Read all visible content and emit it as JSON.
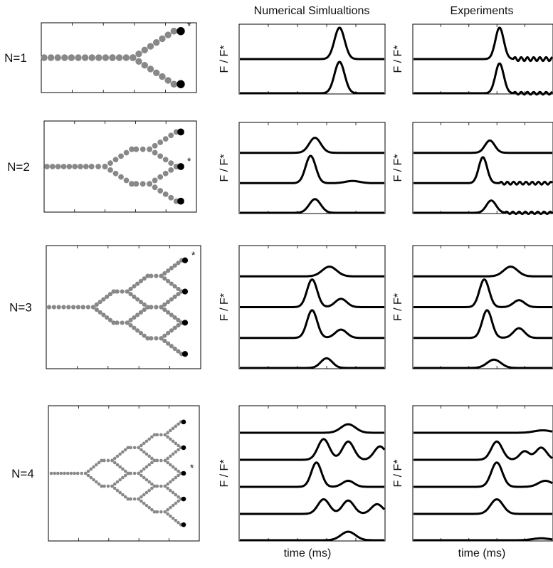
{
  "figure": {
    "col_titles": {
      "numerical": "Numerical Simlualtions",
      "experiments": "Experiments"
    },
    "ylabel": "F / F*",
    "xlabel": "time (ms)"
  },
  "colors": {
    "beads": "#888888",
    "ends": "#000000",
    "traces": "#000000",
    "frame": "#000000"
  },
  "chart_data": [
    {
      "type": "line",
      "row": "N=1",
      "tree_generations": 1,
      "star_output": 0,
      "numerical": [
        {
          "trace": 1,
          "baseline": 0,
          "peaks": [
            {
              "t": 0.69,
              "h": 1.0,
              "w": 0.035
            }
          ]
        },
        {
          "trace": 2,
          "baseline": 0,
          "peaks": [
            {
              "t": 0.69,
              "h": 1.0,
              "w": 0.035
            }
          ]
        }
      ],
      "experiments": [
        {
          "trace": 1,
          "baseline": 0,
          "peaks": [
            {
              "t": 0.62,
              "h": 1.0,
              "w": 0.03
            }
          ],
          "ripple": {
            "start": 0.72,
            "amp": 0.06
          }
        },
        {
          "trace": 2,
          "baseline": 0,
          "peaks": [
            {
              "t": 0.62,
              "h": 0.95,
              "w": 0.03
            }
          ],
          "ripple": {
            "start": 0.72,
            "amp": 0.04
          }
        }
      ]
    },
    {
      "type": "line",
      "row": "N=2",
      "tree_generations": 2,
      "star_output": 1,
      "numerical": [
        {
          "trace": 1,
          "baseline": 0,
          "peaks": [
            {
              "t": 0.52,
              "h": 0.55,
              "w": 0.04
            }
          ]
        },
        {
          "trace": 2,
          "baseline": 0,
          "peaks": [
            {
              "t": 0.49,
              "h": 1.0,
              "w": 0.035
            },
            {
              "t": 0.78,
              "h": 0.08,
              "w": 0.05
            }
          ]
        },
        {
          "trace": 3,
          "baseline": 0,
          "peaks": [
            {
              "t": 0.52,
              "h": 0.5,
              "w": 0.04
            }
          ]
        }
      ],
      "experiments": [
        {
          "trace": 1,
          "baseline": 0,
          "peaks": [
            {
              "t": 0.55,
              "h": 0.45,
              "w": 0.035
            }
          ]
        },
        {
          "trace": 2,
          "baseline": 0,
          "peaks": [
            {
              "t": 0.5,
              "h": 0.95,
              "w": 0.03
            }
          ],
          "ripple": {
            "start": 0.62,
            "amp": 0.05
          }
        },
        {
          "trace": 3,
          "baseline": 0,
          "peaks": [
            {
              "t": 0.56,
              "h": 0.45,
              "w": 0.035
            }
          ],
          "ripple": {
            "start": 0.66,
            "amp": 0.04
          }
        }
      ]
    },
    {
      "type": "line",
      "row": "N=3",
      "tree_generations": 3,
      "star_output": 0,
      "numerical": [
        {
          "trace": 1,
          "baseline": 0,
          "peaks": [
            {
              "t": 0.62,
              "h": 0.35,
              "w": 0.05
            }
          ]
        },
        {
          "trace": 2,
          "baseline": 0,
          "peaks": [
            {
              "t": 0.5,
              "h": 1.0,
              "w": 0.035
            },
            {
              "t": 0.7,
              "h": 0.3,
              "w": 0.04
            }
          ]
        },
        {
          "trace": 3,
          "baseline": 0,
          "peaks": [
            {
              "t": 0.5,
              "h": 1.0,
              "w": 0.035
            },
            {
              "t": 0.7,
              "h": 0.3,
              "w": 0.04
            }
          ]
        },
        {
          "trace": 4,
          "baseline": 0,
          "peaks": [
            {
              "t": 0.6,
              "h": 0.35,
              "w": 0.04
            }
          ]
        }
      ],
      "experiments": [
        {
          "trace": 1,
          "baseline": 0,
          "peaks": [
            {
              "t": 0.7,
              "h": 0.35,
              "w": 0.05
            }
          ]
        },
        {
          "trace": 2,
          "baseline": 0,
          "peaks": [
            {
              "t": 0.51,
              "h": 1.0,
              "w": 0.035
            },
            {
              "t": 0.76,
              "h": 0.25,
              "w": 0.04
            }
          ]
        },
        {
          "trace": 3,
          "baseline": 0,
          "peaks": [
            {
              "t": 0.53,
              "h": 1.0,
              "w": 0.035
            },
            {
              "t": 0.76,
              "h": 0.35,
              "w": 0.04
            }
          ]
        },
        {
          "trace": 4,
          "baseline": 0,
          "peaks": [
            {
              "t": 0.58,
              "h": 0.3,
              "w": 0.05
            }
          ]
        }
      ]
    },
    {
      "type": "line",
      "row": "N=4",
      "tree_generations": 4,
      "star_output": 2,
      "numerical": [
        {
          "trace": 1,
          "baseline": 0,
          "peaks": [
            {
              "t": 0.75,
              "h": 0.35,
              "w": 0.05
            }
          ]
        },
        {
          "trace": 2,
          "baseline": 0,
          "peaks": [
            {
              "t": 0.58,
              "h": 0.85,
              "w": 0.04
            },
            {
              "t": 0.75,
              "h": 0.75,
              "w": 0.04
            },
            {
              "t": 0.97,
              "h": 0.55,
              "w": 0.04
            }
          ]
        },
        {
          "trace": 3,
          "baseline": 0,
          "peaks": [
            {
              "t": 0.53,
              "h": 1.0,
              "w": 0.035
            },
            {
              "t": 0.75,
              "h": 0.25,
              "w": 0.04
            }
          ]
        },
        {
          "trace": 4,
          "baseline": 0,
          "peaks": [
            {
              "t": 0.58,
              "h": 0.6,
              "w": 0.04
            },
            {
              "t": 0.75,
              "h": 0.55,
              "w": 0.04
            },
            {
              "t": 0.95,
              "h": 0.4,
              "w": 0.04
            }
          ]
        },
        {
          "trace": 5,
          "baseline": 0,
          "peaks": [
            {
              "t": 0.75,
              "h": 0.35,
              "w": 0.05
            }
          ]
        }
      ],
      "experiments": [
        {
          "trace": 1,
          "baseline": 0,
          "peaks": [
            {
              "t": 0.93,
              "h": 0.1,
              "w": 0.06
            }
          ]
        },
        {
          "trace": 2,
          "baseline": 0,
          "peaks": [
            {
              "t": 0.6,
              "h": 0.75,
              "w": 0.04
            },
            {
              "t": 0.8,
              "h": 0.35,
              "w": 0.035
            },
            {
              "t": 0.92,
              "h": 0.5,
              "w": 0.04
            }
          ]
        },
        {
          "trace": 3,
          "baseline": 0,
          "peaks": [
            {
              "t": 0.6,
              "h": 1.0,
              "w": 0.04
            },
            {
              "t": 0.95,
              "h": 0.25,
              "w": 0.05
            }
          ]
        },
        {
          "trace": 4,
          "baseline": 0,
          "peaks": [
            {
              "t": 0.6,
              "h": 0.6,
              "w": 0.045
            }
          ]
        },
        {
          "trace": 5,
          "baseline": 0,
          "peaks": [
            {
              "t": 0.92,
              "h": 0.08,
              "w": 0.06
            }
          ]
        }
      ]
    }
  ]
}
